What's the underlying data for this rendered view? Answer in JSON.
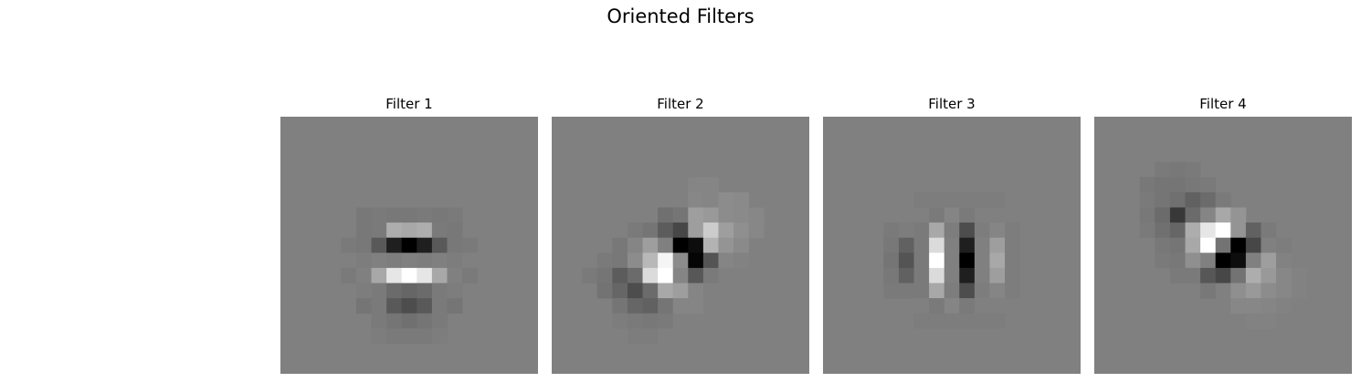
{
  "figure": {
    "title": "Oriented Filters"
  },
  "chart_data": [
    {
      "type": "heatmap",
      "title": "Filter 1",
      "colormap": "gray",
      "background": 0.5,
      "grid_size": 17,
      "axes_visible": false,
      "cells": [
        [
          5,
          6,
          0.47
        ],
        [
          6,
          6,
          0.48
        ],
        [
          7,
          6,
          0.47
        ],
        [
          8,
          6,
          0.47
        ],
        [
          9,
          6,
          0.48
        ],
        [
          10,
          6,
          0.47
        ],
        [
          11,
          6,
          0.48
        ],
        [
          5,
          7,
          0.47
        ],
        [
          6,
          7,
          0.48
        ],
        [
          7,
          7,
          0.68
        ],
        [
          8,
          7,
          0.66
        ],
        [
          9,
          7,
          0.68
        ],
        [
          10,
          7,
          0.48
        ],
        [
          11,
          7,
          0.47
        ],
        [
          4,
          8,
          0.48
        ],
        [
          5,
          8,
          0.47
        ],
        [
          6,
          8,
          0.35
        ],
        [
          7,
          8,
          0.12
        ],
        [
          8,
          8,
          0.0
        ],
        [
          9,
          8,
          0.12
        ],
        [
          10,
          8,
          0.35
        ],
        [
          11,
          8,
          0.47
        ],
        [
          12,
          8,
          0.48
        ],
        [
          4,
          9,
          0.5
        ],
        [
          5,
          9,
          0.49
        ],
        [
          6,
          9,
          0.5
        ],
        [
          7,
          9,
          0.49
        ],
        [
          8,
          9,
          0.5
        ],
        [
          9,
          9,
          0.49
        ],
        [
          10,
          9,
          0.5
        ],
        [
          11,
          9,
          0.49
        ],
        [
          12,
          9,
          0.5
        ],
        [
          4,
          10,
          0.48
        ],
        [
          5,
          10,
          0.5
        ],
        [
          6,
          10,
          0.66
        ],
        [
          7,
          10,
          0.9
        ],
        [
          8,
          10,
          1.0
        ],
        [
          9,
          10,
          0.9
        ],
        [
          10,
          10,
          0.66
        ],
        [
          11,
          10,
          0.5
        ],
        [
          12,
          10,
          0.48
        ],
        [
          5,
          11,
          0.49
        ],
        [
          6,
          11,
          0.48
        ],
        [
          7,
          11,
          0.42
        ],
        [
          8,
          11,
          0.4
        ],
        [
          9,
          11,
          0.42
        ],
        [
          10,
          11,
          0.48
        ],
        [
          11,
          11,
          0.49
        ],
        [
          5,
          12,
          0.46
        ],
        [
          6,
          12,
          0.48
        ],
        [
          7,
          12,
          0.35
        ],
        [
          8,
          12,
          0.3
        ],
        [
          9,
          12,
          0.35
        ],
        [
          10,
          12,
          0.48
        ],
        [
          11,
          12,
          0.46
        ],
        [
          6,
          13,
          0.48
        ],
        [
          7,
          13,
          0.46
        ],
        [
          8,
          13,
          0.44
        ],
        [
          9,
          13,
          0.46
        ],
        [
          10,
          13,
          0.48
        ],
        [
          6,
          14,
          0.49
        ],
        [
          7,
          14,
          0.48
        ],
        [
          8,
          14,
          0.48
        ],
        [
          9,
          14,
          0.48
        ],
        [
          10,
          14,
          0.49
        ]
      ]
    },
    {
      "type": "heatmap",
      "title": "Filter 2",
      "colormap": "gray",
      "background": 0.5,
      "grid_size": 17,
      "axes_visible": false,
      "cells": [
        [
          9,
          4,
          0.52
        ],
        [
          10,
          4,
          0.52
        ],
        [
          9,
          5,
          0.53
        ],
        [
          10,
          5,
          0.52
        ],
        [
          11,
          5,
          0.55
        ],
        [
          12,
          5,
          0.54
        ],
        [
          7,
          6,
          0.44
        ],
        [
          8,
          6,
          0.46
        ],
        [
          9,
          6,
          0.62
        ],
        [
          10,
          6,
          0.6
        ],
        [
          11,
          6,
          0.55
        ],
        [
          12,
          6,
          0.54
        ],
        [
          13,
          6,
          0.53
        ],
        [
          5,
          7,
          0.48
        ],
        [
          6,
          7,
          0.46
        ],
        [
          7,
          7,
          0.36
        ],
        [
          8,
          7,
          0.28
        ],
        [
          9,
          7,
          0.62
        ],
        [
          10,
          7,
          0.8
        ],
        [
          11,
          7,
          0.62
        ],
        [
          12,
          7,
          0.56
        ],
        [
          13,
          7,
          0.53
        ],
        [
          4,
          8,
          0.47
        ],
        [
          5,
          8,
          0.52
        ],
        [
          6,
          8,
          0.62
        ],
        [
          7,
          8,
          0.5
        ],
        [
          8,
          8,
          0.0
        ],
        [
          9,
          8,
          0.05
        ],
        [
          10,
          8,
          0.7
        ],
        [
          11,
          8,
          0.58
        ],
        [
          12,
          8,
          0.54
        ],
        [
          3,
          9,
          0.48
        ],
        [
          4,
          9,
          0.47
        ],
        [
          5,
          9,
          0.55
        ],
        [
          6,
          9,
          0.72
        ],
        [
          7,
          9,
          0.96
        ],
        [
          8,
          9,
          0.55
        ],
        [
          9,
          9,
          0.02
        ],
        [
          10,
          9,
          0.33
        ],
        [
          11,
          9,
          0.52
        ],
        [
          12,
          9,
          0.51
        ],
        [
          2,
          10,
          0.48
        ],
        [
          3,
          10,
          0.46
        ],
        [
          4,
          10,
          0.36
        ],
        [
          5,
          10,
          0.42
        ],
        [
          6,
          10,
          0.86
        ],
        [
          7,
          10,
          1.0
        ],
        [
          8,
          10,
          0.52
        ],
        [
          9,
          10,
          0.34
        ],
        [
          10,
          10,
          0.48
        ],
        [
          11,
          10,
          0.5
        ],
        [
          3,
          11,
          0.45
        ],
        [
          4,
          11,
          0.4
        ],
        [
          5,
          11,
          0.3
        ],
        [
          6,
          11,
          0.42
        ],
        [
          7,
          11,
          0.66
        ],
        [
          8,
          11,
          0.62
        ],
        [
          9,
          11,
          0.52
        ],
        [
          10,
          11,
          0.5
        ],
        [
          4,
          12,
          0.46
        ],
        [
          5,
          12,
          0.4
        ],
        [
          6,
          12,
          0.38
        ],
        [
          7,
          12,
          0.46
        ],
        [
          8,
          12,
          0.52
        ],
        [
          9,
          12,
          0.52
        ],
        [
          4,
          13,
          0.49
        ],
        [
          5,
          13,
          0.48
        ],
        [
          6,
          13,
          0.47
        ],
        [
          7,
          13,
          0.48
        ],
        [
          8,
          13,
          0.5
        ],
        [
          5,
          14,
          0.49
        ],
        [
          6,
          14,
          0.49
        ],
        [
          7,
          14,
          0.5
        ]
      ]
    },
    {
      "type": "heatmap",
      "title": "Filter 3",
      "colormap": "gray",
      "background": 0.5,
      "grid_size": 17,
      "axes_visible": false,
      "cells": [
        [
          6,
          5,
          0.49
        ],
        [
          7,
          5,
          0.49
        ],
        [
          8,
          5,
          0.49
        ],
        [
          9,
          5,
          0.49
        ],
        [
          10,
          5,
          0.49
        ],
        [
          11,
          5,
          0.49
        ],
        [
          6,
          6,
          0.5
        ],
        [
          7,
          6,
          0.48
        ],
        [
          8,
          6,
          0.52
        ],
        [
          9,
          6,
          0.48
        ],
        [
          10,
          6,
          0.5
        ],
        [
          11,
          6,
          0.5
        ],
        [
          4,
          7,
          0.48
        ],
        [
          5,
          7,
          0.49
        ],
        [
          6,
          7,
          0.48
        ],
        [
          7,
          7,
          0.66
        ],
        [
          8,
          7,
          0.49
        ],
        [
          9,
          7,
          0.3
        ],
        [
          10,
          7,
          0.49
        ],
        [
          11,
          7,
          0.52
        ],
        [
          12,
          7,
          0.49
        ],
        [
          4,
          8,
          0.47
        ],
        [
          5,
          8,
          0.38
        ],
        [
          6,
          8,
          0.48
        ],
        [
          7,
          8,
          0.86
        ],
        [
          8,
          8,
          0.5
        ],
        [
          9,
          8,
          0.12
        ],
        [
          10,
          8,
          0.5
        ],
        [
          11,
          8,
          0.62
        ],
        [
          12,
          8,
          0.49
        ],
        [
          4,
          9,
          0.46
        ],
        [
          5,
          9,
          0.33
        ],
        [
          6,
          9,
          0.48
        ],
        [
          7,
          9,
          1.0
        ],
        [
          8,
          9,
          0.5
        ],
        [
          9,
          9,
          0.0
        ],
        [
          10,
          9,
          0.5
        ],
        [
          11,
          9,
          0.66
        ],
        [
          12,
          9,
          0.49
        ],
        [
          4,
          10,
          0.47
        ],
        [
          5,
          10,
          0.38
        ],
        [
          6,
          10,
          0.48
        ],
        [
          7,
          10,
          0.86
        ],
        [
          8,
          10,
          0.5
        ],
        [
          9,
          10,
          0.12
        ],
        [
          10,
          10,
          0.5
        ],
        [
          11,
          10,
          0.62
        ],
        [
          12,
          10,
          0.49
        ],
        [
          4,
          11,
          0.48
        ],
        [
          5,
          11,
          0.48
        ],
        [
          6,
          11,
          0.48
        ],
        [
          7,
          11,
          0.66
        ],
        [
          8,
          11,
          0.49
        ],
        [
          9,
          11,
          0.3
        ],
        [
          10,
          11,
          0.49
        ],
        [
          11,
          11,
          0.52
        ],
        [
          12,
          11,
          0.49
        ],
        [
          6,
          12,
          0.5
        ],
        [
          7,
          12,
          0.48
        ],
        [
          8,
          12,
          0.52
        ],
        [
          9,
          12,
          0.48
        ],
        [
          10,
          12,
          0.5
        ],
        [
          11,
          12,
          0.5
        ],
        [
          6,
          13,
          0.49
        ],
        [
          7,
          13,
          0.49
        ],
        [
          8,
          13,
          0.49
        ],
        [
          9,
          13,
          0.49
        ],
        [
          10,
          13,
          0.49
        ],
        [
          11,
          13,
          0.49
        ]
      ]
    },
    {
      "type": "heatmap",
      "title": "Filter 4",
      "colormap": "gray",
      "background": 0.5,
      "grid_size": 17,
      "axes_visible": false,
      "cells": [
        [
          4,
          3,
          0.48
        ],
        [
          5,
          3,
          0.47
        ],
        [
          6,
          3,
          0.48
        ],
        [
          3,
          4,
          0.47
        ],
        [
          4,
          4,
          0.46
        ],
        [
          5,
          4,
          0.46
        ],
        [
          6,
          4,
          0.47
        ],
        [
          7,
          4,
          0.48
        ],
        [
          3,
          5,
          0.48
        ],
        [
          4,
          5,
          0.46
        ],
        [
          5,
          5,
          0.44
        ],
        [
          6,
          5,
          0.38
        ],
        [
          7,
          5,
          0.42
        ],
        [
          8,
          5,
          0.48
        ],
        [
          3,
          6,
          0.47
        ],
        [
          4,
          6,
          0.42
        ],
        [
          5,
          6,
          0.22
        ],
        [
          6,
          6,
          0.42
        ],
        [
          7,
          6,
          0.52
        ],
        [
          8,
          6,
          0.66
        ],
        [
          9,
          6,
          0.58
        ],
        [
          3,
          7,
          0.48
        ],
        [
          4,
          7,
          0.44
        ],
        [
          5,
          7,
          0.4
        ],
        [
          6,
          7,
          0.68
        ],
        [
          7,
          7,
          0.9
        ],
        [
          8,
          7,
          1.0
        ],
        [
          9,
          7,
          0.58
        ],
        [
          10,
          7,
          0.38
        ],
        [
          11,
          7,
          0.48
        ],
        [
          4,
          8,
          0.47
        ],
        [
          5,
          8,
          0.46
        ],
        [
          6,
          8,
          0.66
        ],
        [
          7,
          8,
          1.0
        ],
        [
          8,
          8,
          0.45
        ],
        [
          9,
          8,
          0.0
        ],
        [
          10,
          8,
          0.28
        ],
        [
          11,
          8,
          0.5
        ],
        [
          12,
          8,
          0.49
        ],
        [
          4,
          9,
          0.48
        ],
        [
          5,
          9,
          0.47
        ],
        [
          6,
          9,
          0.56
        ],
        [
          7,
          9,
          0.5
        ],
        [
          8,
          9,
          0.0
        ],
        [
          9,
          9,
          0.05
        ],
        [
          10,
          9,
          0.5
        ],
        [
          11,
          9,
          0.62
        ],
        [
          12,
          9,
          0.51
        ],
        [
          5,
          10,
          0.48
        ],
        [
          6,
          10,
          0.48
        ],
        [
          7,
          10,
          0.34
        ],
        [
          8,
          10,
          0.28
        ],
        [
          9,
          10,
          0.45
        ],
        [
          10,
          10,
          0.68
        ],
        [
          11,
          10,
          0.6
        ],
        [
          12,
          10,
          0.53
        ],
        [
          13,
          10,
          0.51
        ],
        [
          7,
          11,
          0.47
        ],
        [
          8,
          11,
          0.5
        ],
        [
          9,
          11,
          0.56
        ],
        [
          10,
          11,
          0.6
        ],
        [
          11,
          11,
          0.55
        ],
        [
          12,
          11,
          0.53
        ],
        [
          13,
          11,
          0.51
        ],
        [
          9,
          12,
          0.53
        ],
        [
          10,
          12,
          0.53
        ],
        [
          11,
          12,
          0.52
        ],
        [
          12,
          12,
          0.51
        ],
        [
          10,
          13,
          0.51
        ],
        [
          11,
          13,
          0.51
        ]
      ]
    }
  ]
}
